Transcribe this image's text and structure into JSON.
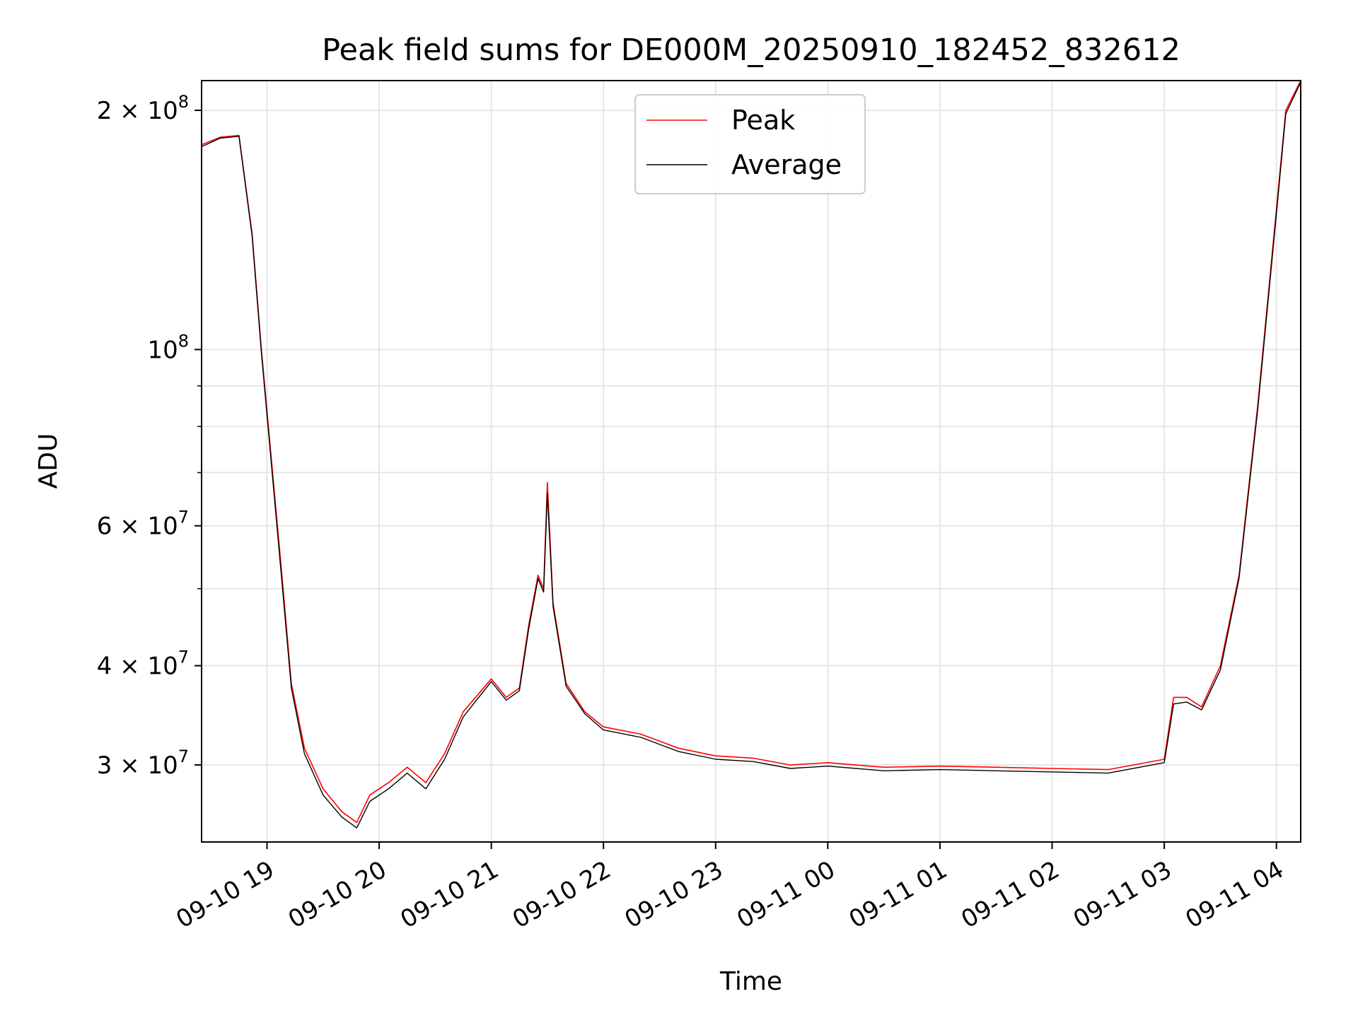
{
  "chart_data": {
    "type": "line",
    "title": "Peak field sums for DE000M_20250910_182452_832612",
    "xlabel": "Time",
    "ylabel": "ADU",
    "yscale": "log",
    "ylim": [
      24000000,
      218000000
    ],
    "xlim": [
      "2025-09-10 18:25",
      "2025-09-11 04:13"
    ],
    "grid": true,
    "legend_position": "top-center",
    "x_ticks": [
      "09-10 19",
      "09-10 20",
      "09-10 21",
      "09-10 22",
      "09-10 23",
      "09-11 00",
      "09-11 01",
      "09-11 02",
      "09-11 03",
      "09-11 04"
    ],
    "y_ticks": [
      {
        "value": 30000000,
        "mantissa": "3",
        "exp": "7"
      },
      {
        "value": 40000000,
        "mantissa": "4",
        "exp": "7"
      },
      {
        "value": 60000000,
        "mantissa": "6",
        "exp": "7"
      },
      {
        "value": 100000000,
        "mantissa": "",
        "exp": "8"
      },
      {
        "value": 200000000,
        "mantissa": "2",
        "exp": "8"
      }
    ],
    "series": [
      {
        "name": "Peak",
        "color": "#ff0000",
        "x": [
          "2025-09-10 18:25",
          "2025-09-10 18:35",
          "2025-09-10 18:45",
          "2025-09-10 18:52",
          "2025-09-10 18:57",
          "2025-09-10 19:03",
          "2025-09-10 19:08",
          "2025-09-10 19:13",
          "2025-09-10 19:20",
          "2025-09-10 19:30",
          "2025-09-10 19:40",
          "2025-09-10 19:48",
          "2025-09-10 19:55",
          "2025-09-10 20:05",
          "2025-09-10 20:15",
          "2025-09-10 20:25",
          "2025-09-10 20:35",
          "2025-09-10 20:45",
          "2025-09-10 21:00",
          "2025-09-10 21:08",
          "2025-09-10 21:15",
          "2025-09-10 21:20",
          "2025-09-10 21:25",
          "2025-09-10 21:28",
          "2025-09-10 21:30",
          "2025-09-10 21:33",
          "2025-09-10 21:40",
          "2025-09-10 21:50",
          "2025-09-10 22:00",
          "2025-09-10 22:20",
          "2025-09-10 22:40",
          "2025-09-10 23:00",
          "2025-09-10 23:20",
          "2025-09-10 23:40",
          "2025-09-11 00:00",
          "2025-09-11 00:30",
          "2025-09-11 01:00",
          "2025-09-11 01:30",
          "2025-09-11 02:00",
          "2025-09-11 02:30",
          "2025-09-11 03:00",
          "2025-09-11 03:05",
          "2025-09-11 03:12",
          "2025-09-11 03:20",
          "2025-09-11 03:30",
          "2025-09-11 03:40",
          "2025-09-11 03:50",
          "2025-09-11 04:00",
          "2025-09-11 04:05",
          "2025-09-11 04:13"
        ],
        "y": [
          181000000,
          185000000,
          186000000,
          140000000,
          100000000,
          70000000,
          52000000,
          38000000,
          31500000,
          28000000,
          26200000,
          25400000,
          27500000,
          28500000,
          29800000,
          28500000,
          31000000,
          35000000,
          38500000,
          36500000,
          37500000,
          45000000,
          52000000,
          50000000,
          68000000,
          48000000,
          38000000,
          35000000,
          33500000,
          32800000,
          31500000,
          30800000,
          30600000,
          30000000,
          30200000,
          29800000,
          29900000,
          29800000,
          29700000,
          29600000,
          30500000,
          36500000,
          36500000,
          35500000,
          40000000,
          52000000,
          85000000,
          150000000,
          200000000,
          218000000
        ]
      },
      {
        "name": "Average",
        "color": "#000000",
        "x": [
          "2025-09-10 18:25",
          "2025-09-10 18:35",
          "2025-09-10 18:45",
          "2025-09-10 18:52",
          "2025-09-10 18:57",
          "2025-09-10 19:03",
          "2025-09-10 19:08",
          "2025-09-10 19:13",
          "2025-09-10 19:20",
          "2025-09-10 19:30",
          "2025-09-10 19:40",
          "2025-09-10 19:48",
          "2025-09-10 19:55",
          "2025-09-10 20:05",
          "2025-09-10 20:15",
          "2025-09-10 20:25",
          "2025-09-10 20:35",
          "2025-09-10 20:45",
          "2025-09-10 21:00",
          "2025-09-10 21:08",
          "2025-09-10 21:15",
          "2025-09-10 21:20",
          "2025-09-10 21:25",
          "2025-09-10 21:28",
          "2025-09-10 21:30",
          "2025-09-10 21:33",
          "2025-09-10 21:40",
          "2025-09-10 21:50",
          "2025-09-10 22:00",
          "2025-09-10 22:20",
          "2025-09-10 22:40",
          "2025-09-10 23:00",
          "2025-09-10 23:20",
          "2025-09-10 23:40",
          "2025-09-11 00:00",
          "2025-09-11 00:30",
          "2025-09-11 01:00",
          "2025-09-11 01:30",
          "2025-09-11 02:00",
          "2025-09-11 02:30",
          "2025-09-11 03:00",
          "2025-09-11 03:05",
          "2025-09-11 03:12",
          "2025-09-11 03:20",
          "2025-09-11 03:30",
          "2025-09-11 03:40",
          "2025-09-11 03:50",
          "2025-09-11 04:00",
          "2025-09-11 04:05",
          "2025-09-11 04:13"
        ],
        "y": [
          180000000,
          184500000,
          185500000,
          139000000,
          99000000,
          69000000,
          51000000,
          37500000,
          31000000,
          27500000,
          25800000,
          25000000,
          27000000,
          28000000,
          29300000,
          28000000,
          30500000,
          34500000,
          38200000,
          36200000,
          37200000,
          44500000,
          51500000,
          49500000,
          66000000,
          47500000,
          37700000,
          34800000,
          33200000,
          32500000,
          31200000,
          30500000,
          30300000,
          29700000,
          29900000,
          29500000,
          29600000,
          29500000,
          29400000,
          29300000,
          30200000,
          35800000,
          36000000,
          35200000,
          39500000,
          51500000,
          84000000,
          148000000,
          198000000,
          217000000
        ]
      }
    ]
  }
}
